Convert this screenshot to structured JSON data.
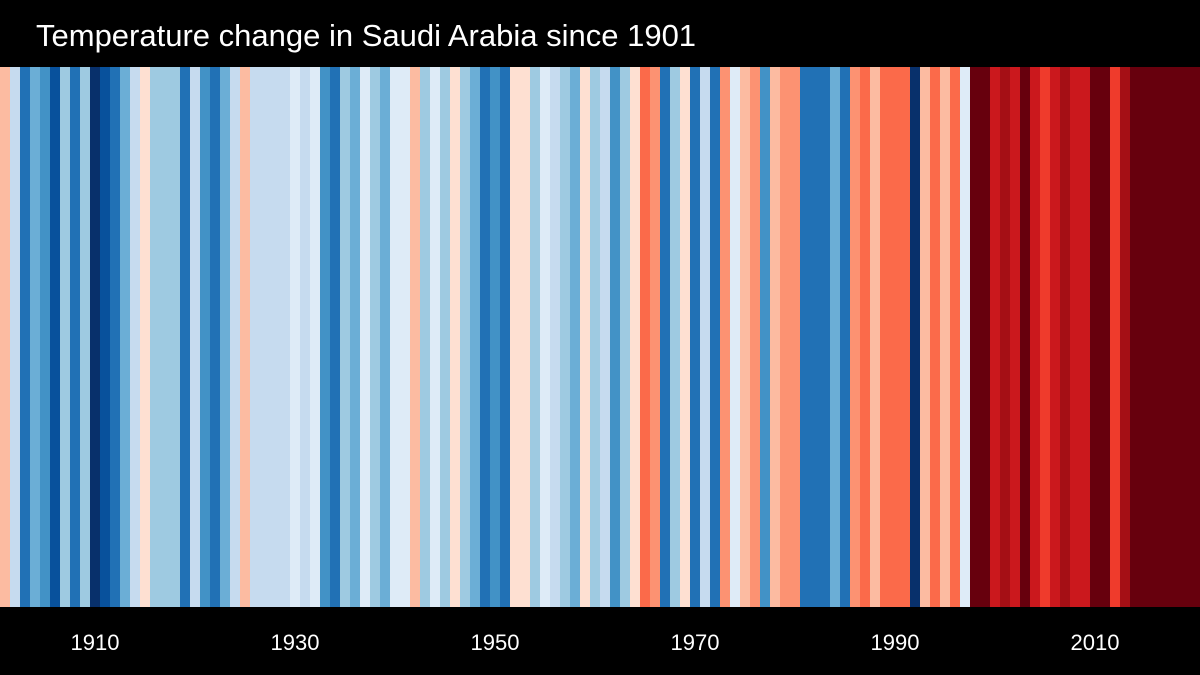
{
  "chart_data": {
    "type": "heatmap",
    "title": "Temperature change in Saudi Arabia since 1901",
    "x": [
      1901,
      1902,
      1903,
      1904,
      1905,
      1906,
      1907,
      1908,
      1909,
      1910,
      1911,
      1912,
      1913,
      1914,
      1915,
      1916,
      1917,
      1918,
      1919,
      1920,
      1921,
      1922,
      1923,
      1924,
      1925,
      1926,
      1927,
      1928,
      1929,
      1930,
      1931,
      1932,
      1933,
      1934,
      1935,
      1936,
      1937,
      1938,
      1939,
      1940,
      1941,
      1942,
      1943,
      1944,
      1945,
      1946,
      1947,
      1948,
      1949,
      1950,
      1951,
      1952,
      1953,
      1954,
      1955,
      1956,
      1957,
      1958,
      1959,
      1960,
      1961,
      1962,
      1963,
      1964,
      1965,
      1966,
      1967,
      1968,
      1969,
      1970,
      1971,
      1972,
      1973,
      1974,
      1975,
      1976,
      1977,
      1978,
      1979,
      1980,
      1981,
      1982,
      1983,
      1984,
      1985,
      1986,
      1987,
      1988,
      1989,
      1990,
      1991,
      1992,
      1993,
      1994,
      1995,
      1996,
      1997,
      1998,
      1999,
      2000,
      2001,
      2002,
      2003,
      2004,
      2005,
      2006,
      2007,
      2008,
      2009,
      2010,
      2011,
      2012,
      2013,
      2014,
      2015,
      2016,
      2017,
      2018,
      2019,
      2020
    ],
    "colors": [
      "#fcbba1",
      "#c6dbef",
      "#2171b5",
      "#6baed6",
      "#4292c6",
      "#08519c",
      "#9ecae1",
      "#2171b5",
      "#9ecae1",
      "#08306b",
      "#08519c",
      "#2171b5",
      "#6baed6",
      "#c6dbef",
      "#fee0d2",
      "#9ecae1",
      "#9ecae1",
      "#9ecae1",
      "#2171b5",
      "#c6dbef",
      "#4292c6",
      "#2171b5",
      "#6baed6",
      "#c6dbef",
      "#fcbba1",
      "#c6dbef",
      "#c6dbef",
      "#c6dbef",
      "#c6dbef",
      "#deebf7",
      "#c6dbef",
      "#deebf7",
      "#4292c6",
      "#2171b5",
      "#9ecae1",
      "#6baed6",
      "#deebf7",
      "#9ecae1",
      "#6baed6",
      "#deebf7",
      "#deebf7",
      "#fcbba1",
      "#9ecae1",
      "#deebf7",
      "#9ecae1",
      "#fee0d2",
      "#9ecae1",
      "#6baed6",
      "#2171b5",
      "#4292c6",
      "#2171b5",
      "#fee0d2",
      "#fee0d2",
      "#9ecae1",
      "#deebf7",
      "#c6dbef",
      "#9ecae1",
      "#6baed6",
      "#fee0d2",
      "#9ecae1",
      "#c6dbef",
      "#4292c6",
      "#9ecae1",
      "#fee0d2",
      "#fb6a4a",
      "#fc9272",
      "#2171b5",
      "#9ecae1",
      "#fee0d2",
      "#2171b5",
      "#c6dbef",
      "#2171b5",
      "#fc9272",
      "#deebf7",
      "#fcbba1",
      "#fc9272",
      "#4292c6",
      "#fcbba1",
      "#fc9272",
      "#fc9272",
      "#2171b5",
      "#2171b5",
      "#2171b5",
      "#6baed6",
      "#2171b5",
      "#fc9272",
      "#fb6a4a",
      "#fcbba1",
      "#fb6a4a",
      "#fb6a4a",
      "#fb6a4a",
      "#08306b",
      "#fcbba1",
      "#fb6a4a",
      "#fcbba1",
      "#fb6a4a",
      "#deebf7",
      "#67000d",
      "#67000d",
      "#cb181d",
      "#a50f15",
      "#cb181d",
      "#67000d",
      "#cb181d",
      "#ef3b2c",
      "#cb181d",
      "#a50f15",
      "#cb181d",
      "#cb181d",
      "#67000d",
      "#67000d",
      "#ef3b2c",
      "#a50f15",
      "#67000d",
      "#67000d",
      "#67000d",
      "#67000d",
      "#67000d",
      "#67000d",
      "#67000d"
    ],
    "tick_labels": [
      "1910",
      "1930",
      "1950",
      "1970",
      "1990",
      "2010"
    ],
    "tick_years": [
      1910,
      1930,
      1950,
      1970,
      1990,
      2010
    ],
    "xlim": [
      1901,
      2020
    ],
    "ylabel": "",
    "grid": false,
    "legend": "none"
  }
}
